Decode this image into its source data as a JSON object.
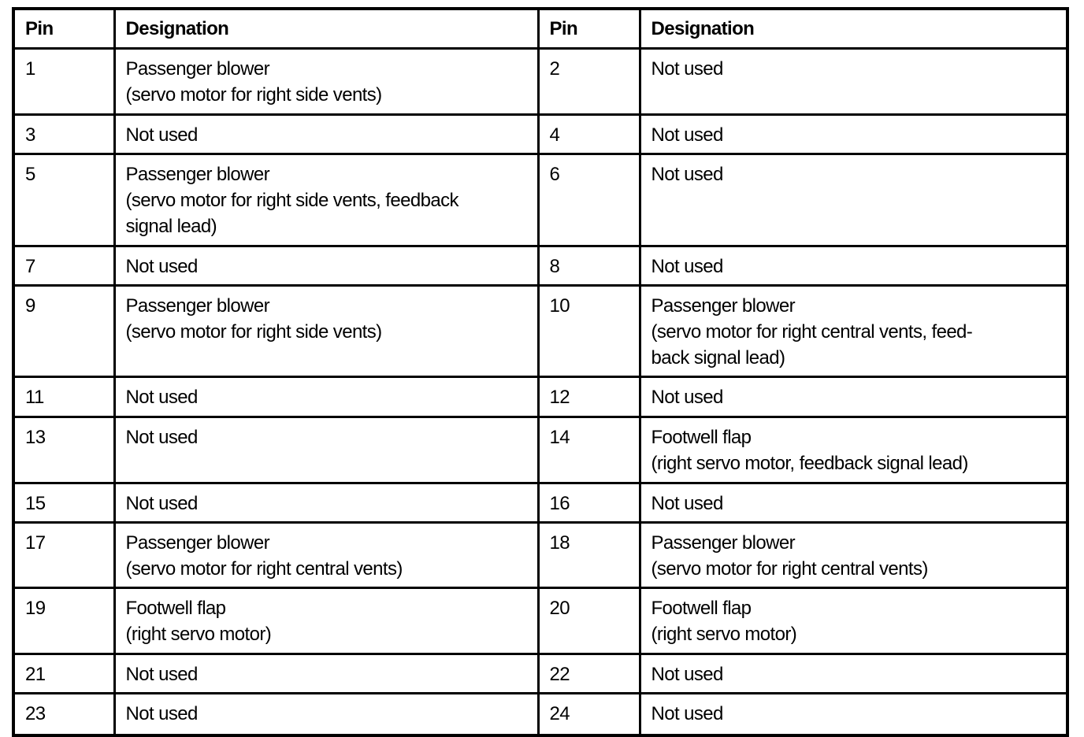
{
  "table": {
    "headers": {
      "pin_left": "Pin",
      "designation_left": "Designation",
      "pin_right": "Pin",
      "designation_right": "Designation"
    },
    "rows": [
      [
        "1",
        "Passenger blower\n(servo motor for right side vents)",
        "2",
        "Not used"
      ],
      [
        "3",
        "Not used",
        "4",
        "Not used"
      ],
      [
        "5",
        "Passenger blower\n(servo motor for right side vents, feedback\nsignal lead)",
        "6",
        "Not used"
      ],
      [
        "7",
        "Not used",
        "8",
        "Not used"
      ],
      [
        "9",
        "Passenger blower\n(servo motor for right side vents)",
        "10",
        "Passenger blower\n(servo motor for right central vents, feed-\nback signal lead)"
      ],
      [
        "11",
        "Not used",
        "12",
        "Not used"
      ],
      [
        "13",
        "Not used",
        "14",
        "Footwell flap\n(right servo motor, feedback signal lead)"
      ],
      [
        "15",
        "Not used",
        "16",
        "Not used"
      ],
      [
        "17",
        "Passenger blower\n(servo motor for right central vents)",
        "18",
        "Passenger blower\n(servo motor for right central vents)"
      ],
      [
        "19",
        "Footwell flap\n(right servo motor)",
        "20",
        "Footwell flap\n(right servo motor)"
      ],
      [
        "21",
        "Not used",
        "22",
        "Not used"
      ],
      [
        "23",
        "Not used",
        "24",
        "Not used"
      ]
    ],
    "colors": {
      "text": "#000000",
      "border": "#000000",
      "background": "#ffffff"
    }
  }
}
